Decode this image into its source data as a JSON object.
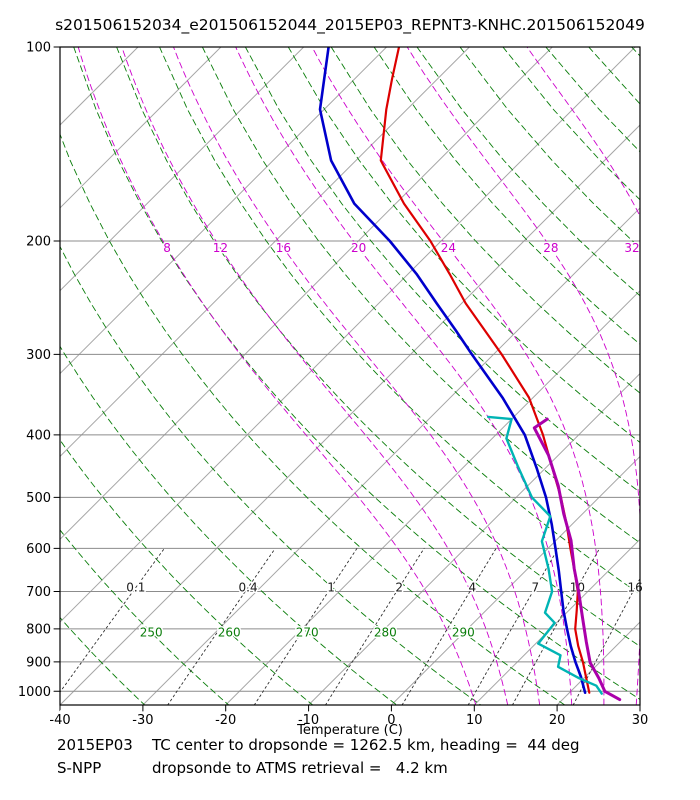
{
  "title": "s201506152034_e201506152044_2015EP03_REPNT3-KNHC.201506152049",
  "footer": {
    "rows": [
      {
        "label": "2015EP03",
        "text": "TC center to dropsonde = 1262.5 km, heading =  44 deg"
      },
      {
        "label": "S-NPP",
        "text": "dropsonde to ATMS retrieval =   4.2 km"
      }
    ]
  },
  "chart_data": {
    "type": "line",
    "subtype": "skew-t-log-p-sounding",
    "title": "s201506152034_e201506152044_2015EP03_REPNT3-KNHC.201506152049",
    "xlabel": "Temperature (C)",
    "ylabel": "",
    "x_ticks": [
      -40,
      -30,
      -20,
      -10,
      0,
      10,
      20,
      30
    ],
    "y_ticks": [
      100,
      200,
      300,
      400,
      500,
      600,
      700,
      800,
      900,
      1000
    ],
    "x_range": [
      -40,
      30
    ],
    "pressure_range": [
      100,
      1050
    ],
    "skew_deg": 45,
    "grid": {
      "isotherm_step_C": 10,
      "dry_adiabat_theta_step_K": 10,
      "dry_adiabat_labels_K": [
        250,
        260,
        270,
        280,
        290
      ],
      "moist_adiabat_labels_C": [
        8,
        12,
        16,
        20,
        24,
        28,
        32
      ],
      "mixing_ratio_labels_gkg": [
        "0.1",
        "0.4",
        "1",
        "2",
        "4",
        "7",
        "10",
        "16"
      ],
      "colors": {
        "isotherm": "#a6a6a6",
        "isobar": "#8c8c8c",
        "dry_adiabat": "#0a7d0a",
        "moist_adiabat": "#cc00cc",
        "mixing_ratio": "#303030"
      }
    },
    "series": [
      {
        "name": "temperature",
        "color": "#dd0000",
        "width": 2.2,
        "points": [
          [
            100,
            -78.5
          ],
          [
            112,
            -75.5
          ],
          [
            125,
            -72.5
          ],
          [
            150,
            -67
          ],
          [
            175,
            -59
          ],
          [
            200,
            -51.3
          ],
          [
            225,
            -45
          ],
          [
            250,
            -39.5
          ],
          [
            275,
            -34
          ],
          [
            300,
            -29
          ],
          [
            350,
            -20.5
          ],
          [
            400,
            -14.3
          ],
          [
            450,
            -9.2
          ],
          [
            500,
            -4.6
          ],
          [
            550,
            -0.7
          ],
          [
            600,
            2.7
          ],
          [
            650,
            5.9
          ],
          [
            700,
            8.8
          ],
          [
            750,
            11
          ],
          [
            800,
            13
          ],
          [
            850,
            15.4
          ],
          [
            900,
            17.9
          ],
          [
            950,
            20.1
          ],
          [
            1005,
            22.4
          ]
        ]
      },
      {
        "name": "dewpoint",
        "color": "#0000cc",
        "width": 2.6,
        "points": [
          [
            100,
            -87
          ],
          [
            125,
            -80.5
          ],
          [
            150,
            -73
          ],
          [
            175,
            -65
          ],
          [
            200,
            -56.2
          ],
          [
            225,
            -49
          ],
          [
            250,
            -43
          ],
          [
            275,
            -37.5
          ],
          [
            300,
            -32.6
          ],
          [
            350,
            -23.7
          ],
          [
            400,
            -16.5
          ],
          [
            450,
            -11.1
          ],
          [
            500,
            -6.4
          ],
          [
            550,
            -2.5
          ],
          [
            600,
            0.9
          ],
          [
            650,
            4
          ],
          [
            700,
            6.8
          ],
          [
            750,
            9.4
          ],
          [
            800,
            12
          ],
          [
            850,
            14.5
          ],
          [
            900,
            17
          ],
          [
            950,
            19.5
          ],
          [
            1005,
            21.9
          ]
        ]
      },
      {
        "name": "dropsonde",
        "color": "#00b4b4",
        "width": 2.4,
        "points": [
          [
            375,
            -23.1
          ],
          [
            378,
            -20
          ],
          [
            405,
            -18.3
          ],
          [
            447,
            -13.6
          ],
          [
            500,
            -8.1
          ],
          [
            535,
            -3.6
          ],
          [
            585,
            -1.6
          ],
          [
            645,
            2.5
          ],
          [
            700,
            5.7
          ],
          [
            755,
            7.4
          ],
          [
            783,
            9.8
          ],
          [
            843,
            10.3
          ],
          [
            879,
            14.4
          ],
          [
            916,
            15.5
          ],
          [
            954,
            19.4
          ],
          [
            980,
            22.4
          ],
          [
            1008,
            24
          ]
        ]
      },
      {
        "name": "atms-retrieval",
        "color": "#aa00aa",
        "width": 3,
        "points": [
          [
            378,
            -15.7
          ],
          [
            390,
            -16.2
          ],
          [
            430,
            -11.2
          ],
          [
            480,
            -6.3
          ],
          [
            530,
            -2.3
          ],
          [
            583,
            1.8
          ],
          [
            645,
            5.6
          ],
          [
            700,
            8.9
          ],
          [
            768,
            12.5
          ],
          [
            838,
            15.9
          ],
          [
            903,
            18.9
          ],
          [
            954,
            21.8
          ],
          [
            1000,
            24.1
          ],
          [
            1030,
            26.9
          ]
        ]
      }
    ]
  }
}
